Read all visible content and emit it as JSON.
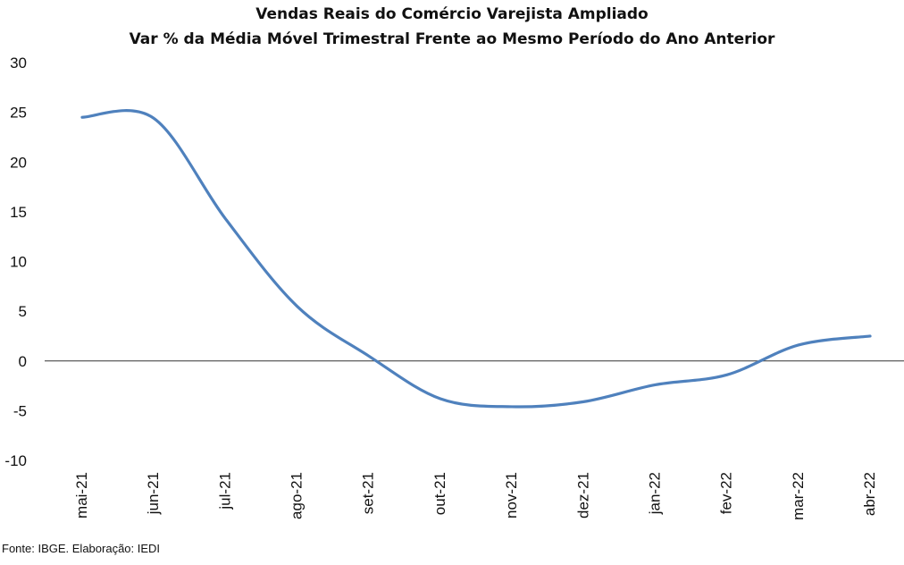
{
  "chart_data": {
    "type": "line",
    "title": "Vendas Reais do Comércio Varejista Ampliado",
    "subtitle": "Var % da Média Móvel Trimestral Frente ao Mesmo Período do Ano Anterior",
    "xlabel": "",
    "ylabel": "",
    "categories": [
      "mai-21",
      "jun-21",
      "jul-21",
      "ago-21",
      "set-21",
      "out-21",
      "nov-21",
      "dez-21",
      "jan-22",
      "fev-22",
      "mar-22",
      "abr-22"
    ],
    "series": [
      {
        "values": [
          24.5,
          24.4,
          14.3,
          5.5,
          0.5,
          -3.8,
          -4.6,
          -4.1,
          -2.4,
          -1.4,
          1.6,
          2.5
        ],
        "color": "#4f81bd"
      }
    ],
    "ylim": [
      -10,
      30
    ],
    "yticks": [
      30,
      25,
      20,
      15,
      10,
      5,
      0,
      -5,
      -10
    ],
    "ytick_labels": [
      "30",
      "25",
      "20",
      "15",
      "10",
      "5",
      "0",
      "-5",
      "-10"
    ],
    "grid": false,
    "legend": "none"
  },
  "source_note": "Fonte: IBGE. Elaboração: IEDI"
}
